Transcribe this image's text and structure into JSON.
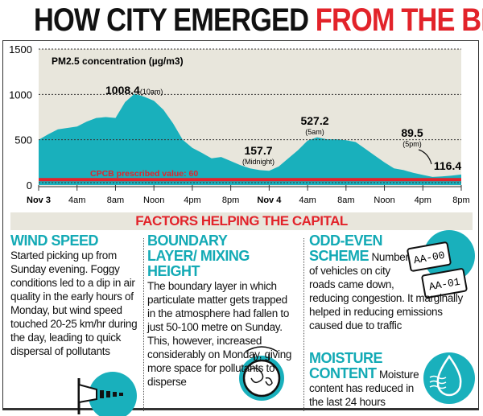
{
  "title": {
    "part1": "HOW CITY EMERGED",
    "part2": "FROM THE BRINK"
  },
  "colors": {
    "area": "#19b0bc",
    "plot_bg": "#e8e6dc",
    "threshold": "#e2232a",
    "heading": "#13aab5",
    "accent_red": "#e2232a"
  },
  "chart_data": {
    "type": "area",
    "title": "PM2.5 concentration (µg/m3)",
    "xlabel": "",
    "ylabel": "",
    "x_tick_labels": [
      "Nov 3",
      "4am",
      "8am",
      "Noon",
      "4pm",
      "8pm",
      "Nov 4",
      "4am",
      "8am",
      "Noon",
      "4pm",
      "8pm"
    ],
    "x_hours_from_start": [
      0,
      1,
      2,
      3,
      4,
      5,
      6,
      7,
      8,
      9,
      10,
      11,
      12,
      13,
      14,
      15,
      16,
      17,
      18,
      19,
      20,
      21,
      22,
      23,
      24,
      25,
      26,
      27,
      28,
      29,
      30,
      31,
      32,
      33,
      34,
      35,
      36,
      37,
      38,
      39,
      40,
      41,
      42,
      43,
      44
    ],
    "values": [
      500,
      560,
      615,
      630,
      645,
      700,
      740,
      750,
      740,
      915,
      1008.4,
      975,
      930,
      830,
      680,
      500,
      410,
      355,
      295,
      310,
      265,
      220,
      185,
      165,
      157.7,
      205,
      295,
      385,
      490,
      527.2,
      505,
      505,
      495,
      475,
      400,
      325,
      250,
      185,
      165,
      135,
      112,
      89.5,
      95,
      105,
      116.4
    ],
    "ylim": [
      0,
      1500
    ],
    "y_ticks": [
      0,
      500,
      1000,
      1500
    ],
    "grid": "dashed horizontal",
    "threshold": {
      "value": 60,
      "label": "CPCB prescribed value: 60"
    },
    "annotations": [
      {
        "value": "1008.4",
        "note": "(10am)",
        "hour": 10
      },
      {
        "value": "157.7",
        "note": "(Midnight)",
        "hour": 24
      },
      {
        "value": "527.2",
        "note": "(5am)",
        "hour": 29
      },
      {
        "value": "89.5",
        "note": "(5pm)",
        "hour": 41
      },
      {
        "value": "116.4",
        "note": "",
        "hour": 44
      }
    ]
  },
  "banner": "FACTORS HELPING THE CAPITAL",
  "factors": [
    {
      "heading": "WIND SPEED",
      "text": "Started picking up from Sunday evening. Foggy conditions led to a dip in air quality in the early hours of Monday, but wind speed touched 20-25 km/hr during the day, leading to quick dispersal of pollutants",
      "icon": "windsock-icon"
    },
    {
      "heading": "BOUNDARY LAYER/ MIXING HEIGHT",
      "text": "The boundary layer in which particulate matter gets trapped in the atmosphere had fallen to just 50-100 metre on Sunday. This, however, increased considerably on Monday, giving more space for pollutants to disperse",
      "icon": "globe-icon"
    },
    {
      "heading": "ODD-EVEN SCHEME",
      "text": "Number of vehicles on city roads came down, reducing congestion. It marginally helped in reducing emissions caused due to traffic",
      "icon": "license-plate-icon",
      "plates": [
        "AA-00",
        "AA-01"
      ]
    },
    {
      "heading": "MOISTURE CONTENT",
      "text": "Moisture content has reduced in the last 24 hours",
      "icon": "water-drop-icon"
    }
  ]
}
